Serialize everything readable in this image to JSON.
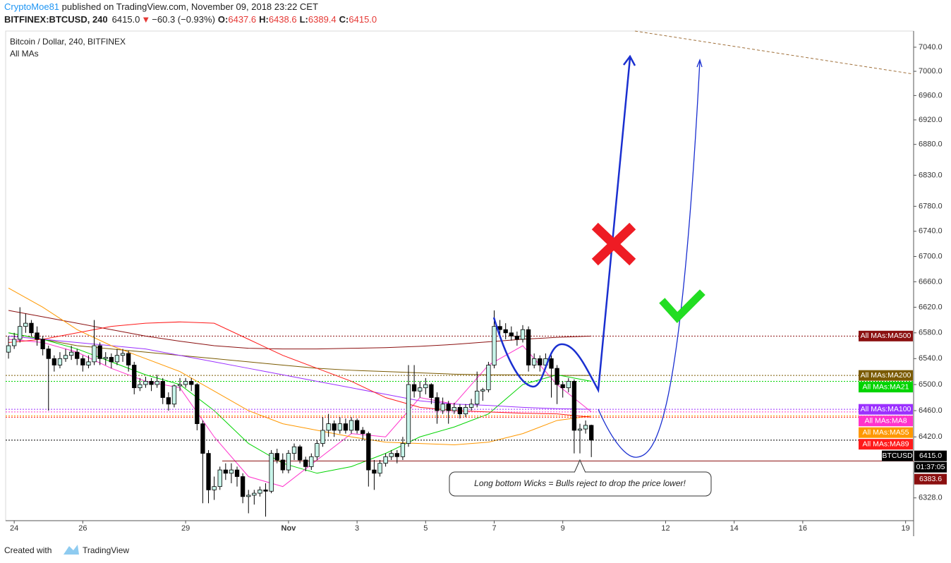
{
  "header": {
    "author": "CryptoMoe81",
    "published": " published on TradingView.com, November 09, 2018 23:22 CET",
    "symbol": "BITFINEX:BTCUSD, 240",
    "price": "6415.0",
    "change_arrow": "▼",
    "change": "−60.3 (−0.93%)",
    "ohlc": [
      {
        "label": "O:",
        "value": "6437.6"
      },
      {
        "label": "H:",
        "value": "6438.6"
      },
      {
        "label": "L:",
        "value": "6389.4"
      },
      {
        "label": "C:",
        "value": "6415.0"
      }
    ]
  },
  "footer": {
    "created": "Created with",
    "brand": "TradingView"
  },
  "chart_data": {
    "type": "candlestick",
    "title": "Bitcoin / Dollar, 240, BITFINEX",
    "subtitle": "All MAs",
    "log_scale": true,
    "grid": false,
    "up_color": "#c8f5ea",
    "down_color": "#000000",
    "xlim": [
      -0.5,
      158.4
    ],
    "xticks": [
      {
        "value": 1,
        "label": "24"
      },
      {
        "value": 13,
        "label": "26"
      },
      {
        "value": 31,
        "label": "29"
      },
      {
        "value": 49,
        "label": "Nov"
      },
      {
        "value": 61,
        "label": "3"
      },
      {
        "value": 73,
        "label": "5"
      },
      {
        "value": 85,
        "label": "7"
      },
      {
        "value": 97,
        "label": "9"
      },
      {
        "value": 115,
        "label": "12"
      },
      {
        "value": 127,
        "label": "14"
      },
      {
        "value": 139,
        "label": "16"
      },
      {
        "value": 157,
        "label": "19"
      }
    ],
    "ylim": [
      6294,
      7067
    ],
    "yticks": [
      {
        "value": 6328,
        "label": "6328.0"
      },
      {
        "value": 6420,
        "label": "6420.0"
      },
      {
        "value": 6460,
        "label": "6460.0"
      },
      {
        "value": 6500,
        "label": "6500.0"
      },
      {
        "value": 6540,
        "label": "6540.0"
      },
      {
        "value": 6580,
        "label": "6580.0"
      },
      {
        "value": 6620,
        "label": "6620.0"
      },
      {
        "value": 6660,
        "label": "6660.0"
      },
      {
        "value": 6700,
        "label": "6700.0"
      },
      {
        "value": 6740,
        "label": "6740.0"
      },
      {
        "value": 6780,
        "label": "6780.0"
      },
      {
        "value": 6830,
        "label": "6830.0"
      },
      {
        "value": 6880,
        "label": "6880.0"
      },
      {
        "value": 6920,
        "label": "6920.0"
      },
      {
        "value": 6960,
        "label": "6960.0"
      },
      {
        "value": 7000,
        "label": "7000.0"
      },
      {
        "value": 7040,
        "label": "7040.0"
      }
    ],
    "candles": [
      [
        6550,
        6575,
        6540,
        6560
      ],
      [
        6560,
        6580,
        6555,
        6570
      ],
      [
        6570,
        6620,
        6565,
        6590
      ],
      [
        6590,
        6610,
        6580,
        6595
      ],
      [
        6595,
        6600,
        6575,
        6580
      ],
      [
        6580,
        6590,
        6560,
        6570
      ],
      [
        6570,
        6575,
        6545,
        6555
      ],
      [
        6555,
        6560,
        6460,
        6540
      ],
      [
        6540,
        6545,
        6520,
        6530
      ],
      [
        6530,
        6550,
        6525,
        6540
      ],
      [
        6540,
        6555,
        6535,
        6545
      ],
      [
        6545,
        6560,
        6538,
        6550
      ],
      [
        6550,
        6555,
        6530,
        6540
      ],
      [
        6540,
        6545,
        6520,
        6530
      ],
      [
        6530,
        6545,
        6525,
        6535
      ],
      [
        6535,
        6600,
        6530,
        6560
      ],
      [
        6560,
        6565,
        6530,
        6540
      ],
      [
        6540,
        6550,
        6530,
        6542
      ],
      [
        6542,
        6548,
        6525,
        6535
      ],
      [
        6535,
        6555,
        6530,
        6545
      ],
      [
        6545,
        6555,
        6535,
        6548
      ],
      [
        6548,
        6552,
        6520,
        6530
      ],
      [
        6530,
        6535,
        6485,
        6495
      ],
      [
        6495,
        6510,
        6490,
        6500
      ],
      [
        6500,
        6512,
        6495,
        6505
      ],
      [
        6505,
        6510,
        6490,
        6500
      ],
      [
        6500,
        6515,
        6495,
        6505
      ],
      [
        6505,
        6510,
        6470,
        6480
      ],
      [
        6480,
        6488,
        6460,
        6470
      ],
      [
        6470,
        6500,
        6465,
        6498
      ],
      [
        6498,
        6510,
        6490,
        6500
      ],
      [
        6500,
        6510,
        6495,
        6505
      ],
      [
        6505,
        6510,
        6490,
        6500
      ],
      [
        6500,
        6502,
        6430,
        6440
      ],
      [
        6440,
        6445,
        6320,
        6395
      ],
      [
        6395,
        6400,
        6320,
        6340
      ],
      [
        6340,
        6360,
        6325,
        6345
      ],
      [
        6345,
        6375,
        6340,
        6370
      ],
      [
        6370,
        6380,
        6355,
        6365
      ],
      [
        6365,
        6380,
        6350,
        6370
      ],
      [
        6370,
        6375,
        6345,
        6360
      ],
      [
        6360,
        6365,
        6320,
        6330
      ],
      [
        6330,
        6340,
        6305,
        6332
      ],
      [
        6332,
        6340,
        6318,
        6335
      ],
      [
        6335,
        6345,
        6330,
        6340
      ],
      [
        6340,
        6350,
        6300,
        6338
      ],
      [
        6338,
        6400,
        6335,
        6395
      ],
      [
        6395,
        6402,
        6380,
        6385
      ],
      [
        6385,
        6395,
        6365,
        6370
      ],
      [
        6370,
        6400,
        6365,
        6395
      ],
      [
        6395,
        6410,
        6385,
        6405
      ],
      [
        6405,
        6408,
        6380,
        6385
      ],
      [
        6385,
        6390,
        6368,
        6375
      ],
      [
        6375,
        6395,
        6370,
        6390
      ],
      [
        6390,
        6415,
        6385,
        6410
      ],
      [
        6410,
        6450,
        6405,
        6430
      ],
      [
        6430,
        6455,
        6420,
        6440
      ],
      [
        6440,
        6445,
        6420,
        6430
      ],
      [
        6430,
        6450,
        6425,
        6440
      ],
      [
        6440,
        6448,
        6425,
        6430
      ],
      [
        6430,
        6450,
        6425,
        6445
      ],
      [
        6445,
        6448,
        6425,
        6430
      ],
      [
        6430,
        6435,
        6415,
        6425
      ],
      [
        6425,
        6428,
        6345,
        6370
      ],
      [
        6370,
        6385,
        6340,
        6365
      ],
      [
        6365,
        6385,
        6360,
        6380
      ],
      [
        6380,
        6395,
        6375,
        6390
      ],
      [
        6390,
        6400,
        6385,
        6395
      ],
      [
        6395,
        6400,
        6380,
        6390
      ],
      [
        6390,
        6420,
        6385,
        6410
      ],
      [
        6410,
        6530,
        6405,
        6500
      ],
      [
        6500,
        6530,
        6480,
        6490
      ],
      [
        6490,
        6505,
        6480,
        6495
      ],
      [
        6495,
        6510,
        6485,
        6500
      ],
      [
        6500,
        6502,
        6470,
        6480
      ],
      [
        6480,
        6488,
        6440,
        6460
      ],
      [
        6460,
        6480,
        6455,
        6470
      ],
      [
        6470,
        6475,
        6440,
        6460
      ],
      [
        6460,
        6472,
        6455,
        6465
      ],
      [
        6465,
        6470,
        6448,
        6455
      ],
      [
        6455,
        6470,
        6450,
        6465
      ],
      [
        6465,
        6478,
        6460,
        6470
      ],
      [
        6470,
        6520,
        6465,
        6490
      ],
      [
        6490,
        6495,
        6475,
        6492
      ],
      [
        6492,
        6535,
        6488,
        6530
      ],
      [
        6530,
        6615,
        6525,
        6590
      ],
      [
        6590,
        6600,
        6575,
        6585
      ],
      [
        6585,
        6595,
        6570,
        6580
      ],
      [
        6580,
        6590,
        6568,
        6575
      ],
      [
        6575,
        6582,
        6560,
        6570
      ],
      [
        6570,
        6592,
        6565,
        6585
      ],
      [
        6585,
        6590,
        6520,
        6530
      ],
      [
        6530,
        6548,
        6525,
        6540
      ],
      [
        6540,
        6545,
        6520,
        6530
      ],
      [
        6530,
        6548,
        6525,
        6540
      ],
      [
        6540,
        6545,
        6480,
        6525
      ],
      [
        6525,
        6530,
        6470,
        6500
      ],
      [
        6500,
        6505,
        6480,
        6495
      ],
      [
        6495,
        6510,
        6488,
        6505
      ],
      [
        6505,
        6508,
        6395,
        6430
      ],
      [
        6430,
        6440,
        6395,
        6432
      ],
      [
        6432,
        6445,
        6425,
        6437.6
      ],
      [
        6437.6,
        6438.6,
        6389.4,
        6415.0
      ]
    ],
    "moving_averages": {
      "x": [
        0,
        6,
        12,
        18,
        24,
        30,
        36,
        42,
        48,
        54,
        60,
        66,
        72,
        78,
        84,
        90,
        96,
        102
      ],
      "series": [
        {
          "name": "All MAs:MA500",
          "color": "#8b1010",
          "values": [
            6615,
            6605,
            6595,
            6585,
            6575,
            6567,
            6560,
            6556,
            6555,
            6555,
            6556,
            6557,
            6559,
            6562,
            6566,
            6570,
            6573,
            6575
          ]
        },
        {
          "name": "All MAs:MA200",
          "color": "#7a5a00",
          "values": [
            6580,
            6570,
            6560,
            6555,
            6550,
            6545,
            6540,
            6535,
            6530,
            6525,
            6522,
            6520,
            6518,
            6516,
            6515,
            6515,
            6514,
            6514
          ]
        },
        {
          "name": "All MAs:MA21",
          "color": "#00d400",
          "values": [
            6580,
            6570,
            6555,
            6535,
            6515,
            6500,
            6460,
            6410,
            6380,
            6365,
            6375,
            6395,
            6420,
            6435,
            6455,
            6500,
            6515,
            6505
          ]
        },
        {
          "name": "All MAs:MA100",
          "color": "#9b30ff",
          "values": [
            6575,
            6570,
            6565,
            6560,
            6555,
            6545,
            6535,
            6525,
            6515,
            6505,
            6495,
            6485,
            6475,
            6470,
            6468,
            6465,
            6463,
            6462
          ]
        },
        {
          "name": "All MAs:MA8",
          "color": "#ff33cc",
          "values": [
            6570,
            6565,
            6550,
            6525,
            6505,
            6495,
            6420,
            6360,
            6345,
            6385,
            6425,
            6420,
            6480,
            6470,
            6530,
            6560,
            6500,
            6458
          ]
        },
        {
          "name": "All MAs:MA55",
          "color": "#ff9800",
          "values": [
            6650,
            6620,
            6585,
            6560,
            6540,
            6520,
            6490,
            6460,
            6440,
            6430,
            6420,
            6412,
            6410,
            6408,
            6412,
            6425,
            6445,
            6452
          ]
        },
        {
          "name": "All MAs:MA89",
          "color": "#ff1a1a",
          "values": [
            6565,
            6570,
            6580,
            6590,
            6595,
            6597,
            6595,
            6570,
            6545,
            6525,
            6505,
            6480,
            6465,
            6460,
            6458,
            6456,
            6455,
            6450
          ]
        }
      ]
    },
    "last_price": {
      "label": "BTCUSD",
      "value": 6415.0,
      "value_label": "6415.0",
      "countdown": "01:37:05"
    },
    "level_line": {
      "value": 6383.6,
      "value_label": "6383.6",
      "color": "#8b1010"
    },
    "annotation": "Long bottom Wicks = Bulls reject to drop the price lower!"
  }
}
